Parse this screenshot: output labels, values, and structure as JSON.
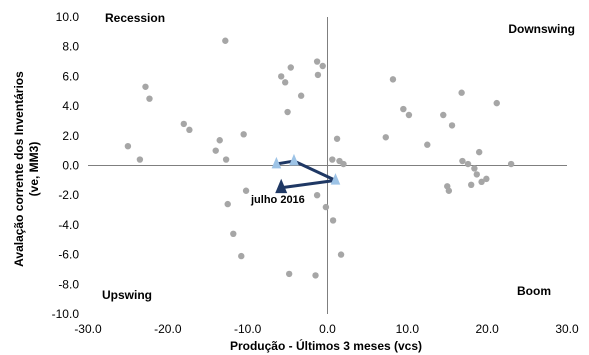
{
  "chart_data": {
    "type": "scatter",
    "xlabel": "Produção - Últimos 3 meses (vcs)",
    "ylabel_line1": "Avalação corrente dos Inventários",
    "ylabel_line2": "(ve, MM3)",
    "xlim": [
      -30,
      30
    ],
    "ylim": [
      -10,
      10
    ],
    "xticks": [
      "-30.0",
      "-20.0",
      "-10.0",
      "0.0",
      "10.0",
      "20.0",
      "30.0"
    ],
    "yticks": [
      "10.0",
      "8.0",
      "6.0",
      "4.0",
      "2.0",
      "0.0",
      "-2.0",
      "-4.0",
      "-6.0",
      "-8.0",
      "-10.0"
    ],
    "xtick_values": [
      -30,
      -20,
      -10,
      0,
      10,
      20,
      30
    ],
    "ytick_values": [
      10,
      8,
      6,
      4,
      2,
      0,
      -2,
      -4,
      -6,
      -8,
      -10
    ],
    "grid": false,
    "quadrants": {
      "top_left": "Recession",
      "top_right": "Downswing",
      "bottom_left": "Upswing",
      "bottom_right": "Boom"
    },
    "colors": {
      "history": "#a6a6a6",
      "path": "#1f3864",
      "recent_marker": "#9dc3e6",
      "current_marker": "#1f3864"
    },
    "history_points": [
      {
        "x": -25.0,
        "y": 1.3
      },
      {
        "x": -23.5,
        "y": 0.4
      },
      {
        "x": -22.8,
        "y": 5.3
      },
      {
        "x": -22.3,
        "y": 4.5
      },
      {
        "x": -18.0,
        "y": 2.8
      },
      {
        "x": -17.3,
        "y": 2.4
      },
      {
        "x": -14.0,
        "y": 1.0
      },
      {
        "x": -13.5,
        "y": 1.7
      },
      {
        "x": -12.8,
        "y": 8.4
      },
      {
        "x": -12.7,
        "y": 0.4
      },
      {
        "x": -12.5,
        "y": -2.6
      },
      {
        "x": -11.8,
        "y": -4.6
      },
      {
        "x": -10.8,
        "y": -6.1
      },
      {
        "x": -10.5,
        "y": 2.1
      },
      {
        "x": -10.2,
        "y": -1.7
      },
      {
        "x": -5.8,
        "y": 6.0
      },
      {
        "x": -5.3,
        "y": 5.6
      },
      {
        "x": -4.6,
        "y": 6.6
      },
      {
        "x": -5.0,
        "y": 3.6
      },
      {
        "x": -3.3,
        "y": 4.7
      },
      {
        "x": -4.8,
        "y": -7.3
      },
      {
        "x": -1.3,
        "y": 7.0
      },
      {
        "x": -1.2,
        "y": 6.1
      },
      {
        "x": -0.6,
        "y": 6.7
      },
      {
        "x": -1.3,
        "y": -2.0
      },
      {
        "x": -1.5,
        "y": -7.4
      },
      {
        "x": -0.2,
        "y": -2.8
      },
      {
        "x": 0.6,
        "y": 0.4
      },
      {
        "x": 0.7,
        "y": -3.7
      },
      {
        "x": 1.2,
        "y": 1.8
      },
      {
        "x": 1.5,
        "y": 0.3
      },
      {
        "x": 2.0,
        "y": 0.1
      },
      {
        "x": 1.7,
        "y": -6.0
      },
      {
        "x": 7.3,
        "y": 1.9
      },
      {
        "x": 8.2,
        "y": 5.8
      },
      {
        "x": 9.5,
        "y": 3.8
      },
      {
        "x": 10.2,
        "y": 3.4
      },
      {
        "x": 12.5,
        "y": 1.4
      },
      {
        "x": 14.5,
        "y": 3.4
      },
      {
        "x": 15.0,
        "y": -1.4
      },
      {
        "x": 15.2,
        "y": -1.7
      },
      {
        "x": 15.6,
        "y": 2.7
      },
      {
        "x": 16.8,
        "y": 4.9
      },
      {
        "x": 16.9,
        "y": 0.3
      },
      {
        "x": 17.6,
        "y": 0.1
      },
      {
        "x": 18.0,
        "y": -1.3
      },
      {
        "x": 18.4,
        "y": -0.2
      },
      {
        "x": 18.7,
        "y": -0.6
      },
      {
        "x": 19.0,
        "y": 0.9
      },
      {
        "x": 19.3,
        "y": -1.1
      },
      {
        "x": 19.9,
        "y": -0.9
      },
      {
        "x": 21.2,
        "y": 4.2
      },
      {
        "x": 23.0,
        "y": 0.1
      }
    ],
    "path_points": [
      {
        "x": -6.4,
        "y": 0.1
      },
      {
        "x": -4.2,
        "y": 0.3
      },
      {
        "x": 1.0,
        "y": -1.0
      },
      {
        "x": -5.8,
        "y": -1.5
      }
    ],
    "annotation": {
      "text": "julho 2016",
      "x": -5.8,
      "y": -1.5
    }
  }
}
